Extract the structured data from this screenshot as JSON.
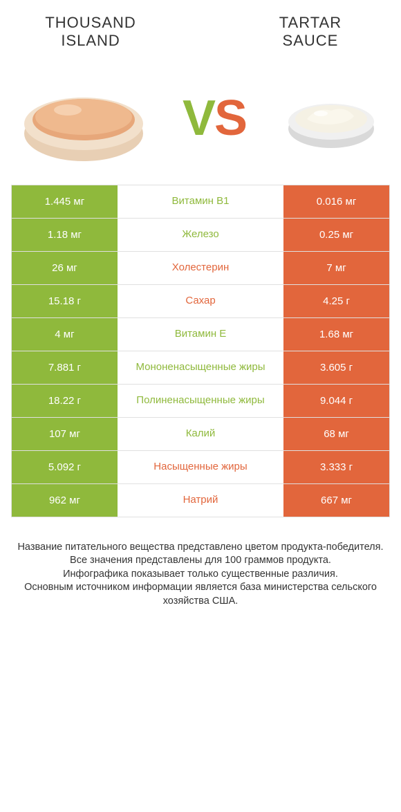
{
  "colors": {
    "green": "#8fb93c",
    "orange": "#e2663c",
    "green_dim": "#999999",
    "orange_dim": "#c9c9c9",
    "white": "#ffffff",
    "border": "#e0e0e0",
    "text": "#333333"
  },
  "titles": {
    "left_line1": "THOUSAND",
    "left_line2": "ISLAND",
    "right_line1": "TARTAR",
    "right_line2": "SAUCE"
  },
  "vs": {
    "v": "V",
    "s": "S"
  },
  "rows": [
    {
      "left": "1.445 мг",
      "mid": "Витамин B1",
      "right": "0.016 мг",
      "winner": "left"
    },
    {
      "left": "1.18 мг",
      "mid": "Железо",
      "right": "0.25 мг",
      "winner": "left"
    },
    {
      "left": "26 мг",
      "mid": "Холестерин",
      "right": "7 мг",
      "winner": "right"
    },
    {
      "left": "15.18 г",
      "mid": "Сахар",
      "right": "4.25 г",
      "winner": "right"
    },
    {
      "left": "4 мг",
      "mid": "Витамин E",
      "right": "1.68 мг",
      "winner": "left"
    },
    {
      "left": "7.881 г",
      "mid": "Мононенасыщенные жиры",
      "right": "3.605 г",
      "winner": "left"
    },
    {
      "left": "18.22 г",
      "mid": "Полиненасыщенные жиры",
      "right": "9.044 г",
      "winner": "left"
    },
    {
      "left": "107 мг",
      "mid": "Калий",
      "right": "68 мг",
      "winner": "left"
    },
    {
      "left": "5.092 г",
      "mid": "Насыщенные жиры",
      "right": "3.333 г",
      "winner": "right"
    },
    {
      "left": "962 мг",
      "mid": "Натрий",
      "right": "667 мг",
      "winner": "right"
    }
  ],
  "footer": {
    "l1": "Название питательного вещества представлено цветом продукта-победителя.",
    "l2": "Все значения представлены для 100 граммов продукта.",
    "l3": "Инфографика показывает только существенные различия.",
    "l4": "Основным источником информации является база министерства сельского хозяйства США."
  }
}
